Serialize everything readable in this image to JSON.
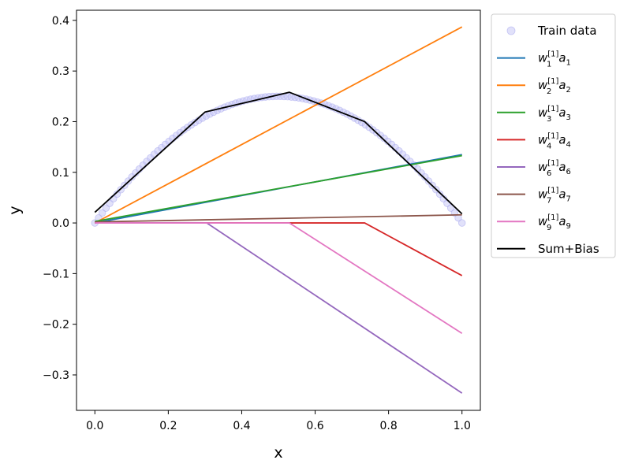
{
  "chart_data": {
    "type": "line",
    "xlabel": "x",
    "ylabel": "y",
    "xlim": [
      -0.05,
      1.05
    ],
    "ylim": [
      -0.37,
      0.42
    ],
    "xticks": [
      0.0,
      0.2,
      0.4,
      0.6,
      0.8,
      1.0
    ],
    "xtick_labels": [
      "0.0",
      "0.2",
      "0.4",
      "0.6",
      "0.8",
      "1.0"
    ],
    "yticks": [
      -0.3,
      -0.2,
      -0.1,
      0.0,
      0.1,
      0.2,
      0.3,
      0.4
    ],
    "ytick_labels": [
      "−0.3",
      "−0.2",
      "−0.1",
      "0.0",
      "0.1",
      "0.2",
      "0.3",
      "0.4"
    ],
    "grid": false,
    "legend_position": "outside-right",
    "scatter": {
      "name": "Train data",
      "color": "#c9c9f5",
      "function": "x*(1-x)",
      "n_points": 100,
      "x_range": [
        0,
        1
      ]
    },
    "series": [
      {
        "name": "w_1^{[1]}a_1",
        "label_main": "w",
        "label_sub": "1",
        "label_sup": "[1]",
        "label_var": "a",
        "label_var_sub": "1",
        "color": "#1f77b4",
        "x": [
          0,
          1
        ],
        "y": [
          0.0,
          0.135
        ]
      },
      {
        "name": "w_2^{[1]}a_2",
        "label_main": "w",
        "label_sub": "2",
        "label_sup": "[1]",
        "label_var": "a",
        "label_var_sub": "2",
        "color": "#ff7f0e",
        "x": [
          0,
          1
        ],
        "y": [
          0.0,
          0.387
        ]
      },
      {
        "name": "w_3^{[1]}a_3",
        "label_main": "w",
        "label_sub": "3",
        "label_sup": "[1]",
        "label_var": "a",
        "label_var_sub": "3",
        "color": "#2ca02c",
        "x": [
          0,
          1
        ],
        "y": [
          0.003,
          0.133
        ]
      },
      {
        "name": "w_4^{[1]}a_4",
        "label_main": "w",
        "label_sub": "4",
        "label_sup": "[1]",
        "label_var": "a",
        "label_var_sub": "4",
        "color": "#d62728",
        "x": [
          0,
          0.735,
          1
        ],
        "y": [
          0.0,
          0.0,
          -0.104
        ]
      },
      {
        "name": "w_6^{[1]}a_6",
        "label_main": "w",
        "label_sub": "6",
        "label_sup": "[1]",
        "label_var": "a",
        "label_var_sub": "6",
        "color": "#9467bd",
        "x": [
          0,
          0.305,
          1
        ],
        "y": [
          0.0,
          0.0,
          -0.336
        ]
      },
      {
        "name": "w_7^{[1]}a_7",
        "label_main": "w",
        "label_sub": "7",
        "label_sup": "[1]",
        "label_var": "a",
        "label_var_sub": "7",
        "color": "#8c564b",
        "x": [
          0,
          1
        ],
        "y": [
          0.002,
          0.016
        ]
      },
      {
        "name": "w_9^{[1]}a_9",
        "label_main": "w",
        "label_sub": "9",
        "label_sup": "[1]",
        "label_var": "a",
        "label_var_sub": "9",
        "color": "#e377c2",
        "x": [
          0,
          0.53,
          1
        ],
        "y": [
          0.0,
          0.0,
          -0.218
        ]
      },
      {
        "name": "Sum+Bias",
        "plain_label": "Sum+Bias",
        "color": "#000000",
        "x": [
          0,
          0.3,
          0.53,
          0.735,
          1
        ],
        "y": [
          0.021,
          0.219,
          0.258,
          0.2,
          0.018
        ]
      }
    ]
  }
}
